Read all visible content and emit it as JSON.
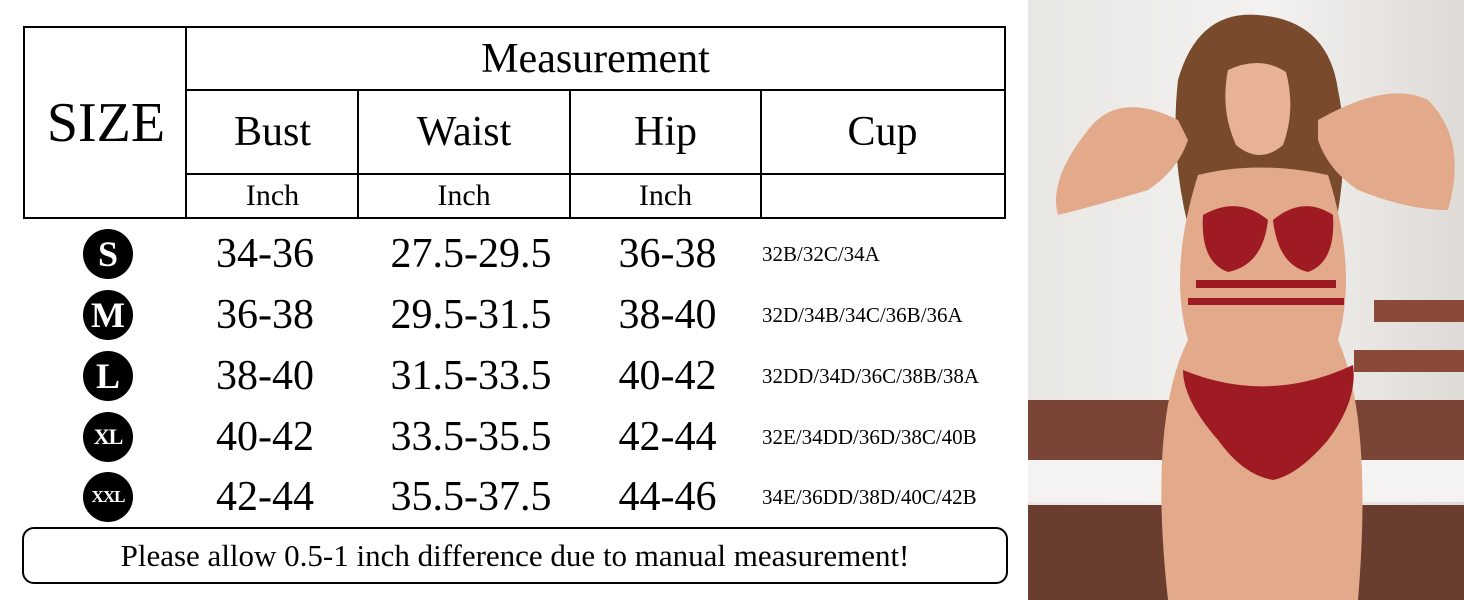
{
  "table": {
    "size_header": "SIZE",
    "measurement_header": "Measurement",
    "columns": [
      "Bust",
      "Waist",
      "Hip",
      "Cup"
    ],
    "units": [
      "Inch",
      "Inch",
      "Inch",
      ""
    ],
    "rows": [
      {
        "size": "S",
        "bust": "34-36",
        "waist": "27.5-29.5",
        "hip": "36-38",
        "cup": "32B/32C/34A"
      },
      {
        "size": "M",
        "bust": "36-38",
        "waist": "29.5-31.5",
        "hip": "38-40",
        "cup": "32D/34B/34C/36B/36A"
      },
      {
        "size": "L",
        "bust": "38-40",
        "waist": "31.5-33.5",
        "hip": "40-42",
        "cup": "32DD/34D/36C/38B/38A"
      },
      {
        "size": "XL",
        "bust": "40-42",
        "waist": "33.5-35.5",
        "hip": "42-44",
        "cup": "32E/34DD/36D/38C/40B"
      },
      {
        "size": "XXL",
        "bust": "42-44",
        "waist": "35.5-37.5",
        "hip": "44-46",
        "cup": "34E/36DD/38D/40C/42B"
      }
    ]
  },
  "note": "Please allow 0.5-1 inch difference due to manual measurement!",
  "colors": {
    "lingerie": "#9e1b24",
    "skin": "#e2a98a",
    "hair": "#7a4a2c"
  }
}
